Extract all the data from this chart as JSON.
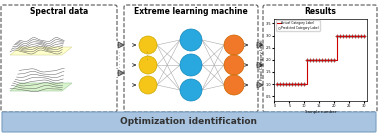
{
  "title_spectral": "Spectral data",
  "title_elm": "Extreme learning machine",
  "title_results": "Results",
  "bottom_text": "Optimization identification",
  "bottom_bar_color": "#a8c4e0",
  "node_yellow": "#f5c518",
  "node_blue": "#29a8e0",
  "node_orange": "#f07828",
  "plot_red": "#cc0000",
  "plot_dash_color": "#888888",
  "spectral_line_color": "#444444",
  "connection_color": "#aaaaaa",
  "arrow_color": "#333333",
  "box_edge_color": "#555555"
}
